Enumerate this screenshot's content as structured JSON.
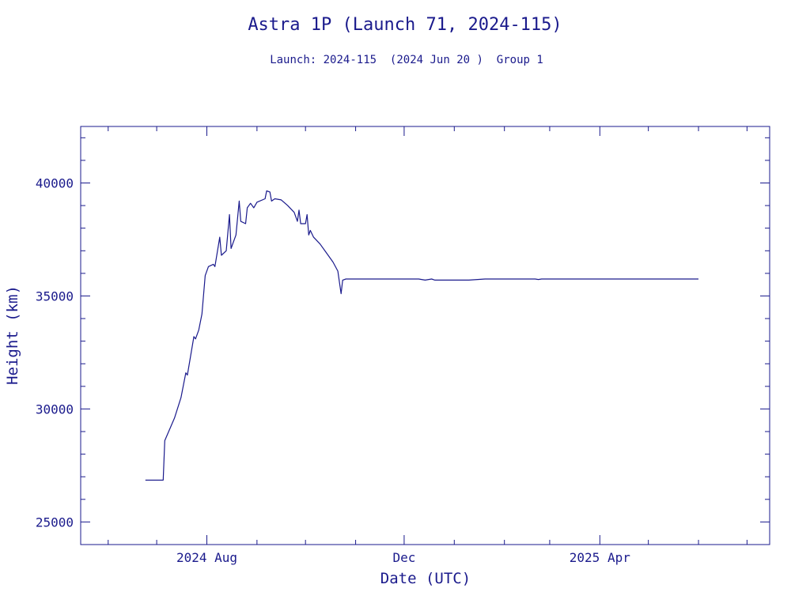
{
  "chart_data": {
    "type": "line",
    "title": "Astra 1P (Launch 71, 2024-115)",
    "subtitle": "Launch: 2024-115  (2024 Jun 20 )  Group 1",
    "xlabel": "Date (UTC)",
    "ylabel": "Height (km)",
    "xlim": [
      "2024-05-15",
      "2025-07-15"
    ],
    "ylim": [
      24000,
      42500
    ],
    "x_tick_labels": [
      {
        "date": "2024-08-01",
        "label": "2024 Aug"
      },
      {
        "date": "2024-12-01",
        "label": "Dec"
      },
      {
        "date": "2025-04-01",
        "label": "2025 Apr"
      }
    ],
    "y_ticks": [
      25000,
      30000,
      35000,
      40000
    ],
    "grid": false,
    "color": "#1a1a8c",
    "series": [
      {
        "points": [
          [
            "2024-06-24",
            26850
          ],
          [
            "2024-07-05",
            26850
          ],
          [
            "2024-07-06",
            28600
          ],
          [
            "2024-07-12",
            29600
          ],
          [
            "2024-07-16",
            30500
          ],
          [
            "2024-07-19",
            31600
          ],
          [
            "2024-07-20",
            31500
          ],
          [
            "2024-07-24",
            33200
          ],
          [
            "2024-07-25",
            33100
          ],
          [
            "2024-07-27",
            33500
          ],
          [
            "2024-07-29",
            34200
          ],
          [
            "2024-07-31",
            35900
          ],
          [
            "2024-08-02",
            36300
          ],
          [
            "2024-08-05",
            36400
          ],
          [
            "2024-08-06",
            36300
          ],
          [
            "2024-08-09",
            37600
          ],
          [
            "2024-08-10",
            36800
          ],
          [
            "2024-08-13",
            37000
          ],
          [
            "2024-08-15",
            38600
          ],
          [
            "2024-08-16",
            37100
          ],
          [
            "2024-08-19",
            37700
          ],
          [
            "2024-08-21",
            39200
          ],
          [
            "2024-08-22",
            38300
          ],
          [
            "2024-08-25",
            38200
          ],
          [
            "2024-08-26",
            38900
          ],
          [
            "2024-08-28",
            39100
          ],
          [
            "2024-08-30",
            38900
          ],
          [
            "2024-09-01",
            39150
          ],
          [
            "2024-09-06",
            39300
          ],
          [
            "2024-09-07",
            39650
          ],
          [
            "2024-09-09",
            39600
          ],
          [
            "2024-09-10",
            39200
          ],
          [
            "2024-09-12",
            39300
          ],
          [
            "2024-09-16",
            39250
          ],
          [
            "2024-09-20",
            39000
          ],
          [
            "2024-09-24",
            38700
          ],
          [
            "2024-09-26",
            38300
          ],
          [
            "2024-09-27",
            38800
          ],
          [
            "2024-09-28",
            38200
          ],
          [
            "2024-10-01",
            38200
          ],
          [
            "2024-10-02",
            38600
          ],
          [
            "2024-10-03",
            37700
          ],
          [
            "2024-10-04",
            37900
          ],
          [
            "2024-10-06",
            37600
          ],
          [
            "2024-10-10",
            37300
          ],
          [
            "2024-10-14",
            36900
          ],
          [
            "2024-10-18",
            36500
          ],
          [
            "2024-10-21",
            36100
          ],
          [
            "2024-10-23",
            35100
          ],
          [
            "2024-10-24",
            35700
          ],
          [
            "2024-10-26",
            35750
          ],
          [
            "2024-11-15",
            35750
          ],
          [
            "2024-12-10",
            35750
          ],
          [
            "2024-12-14",
            35700
          ],
          [
            "2024-12-18",
            35750
          ],
          [
            "2024-12-20",
            35700
          ],
          [
            "2025-01-10",
            35700
          ],
          [
            "2025-01-20",
            35750
          ],
          [
            "2025-02-20",
            35750
          ],
          [
            "2025-02-22",
            35730
          ],
          [
            "2025-02-24",
            35750
          ],
          [
            "2025-04-01",
            35750
          ],
          [
            "2025-05-15",
            35750
          ],
          [
            "2025-06-01",
            35750
          ]
        ]
      }
    ]
  }
}
